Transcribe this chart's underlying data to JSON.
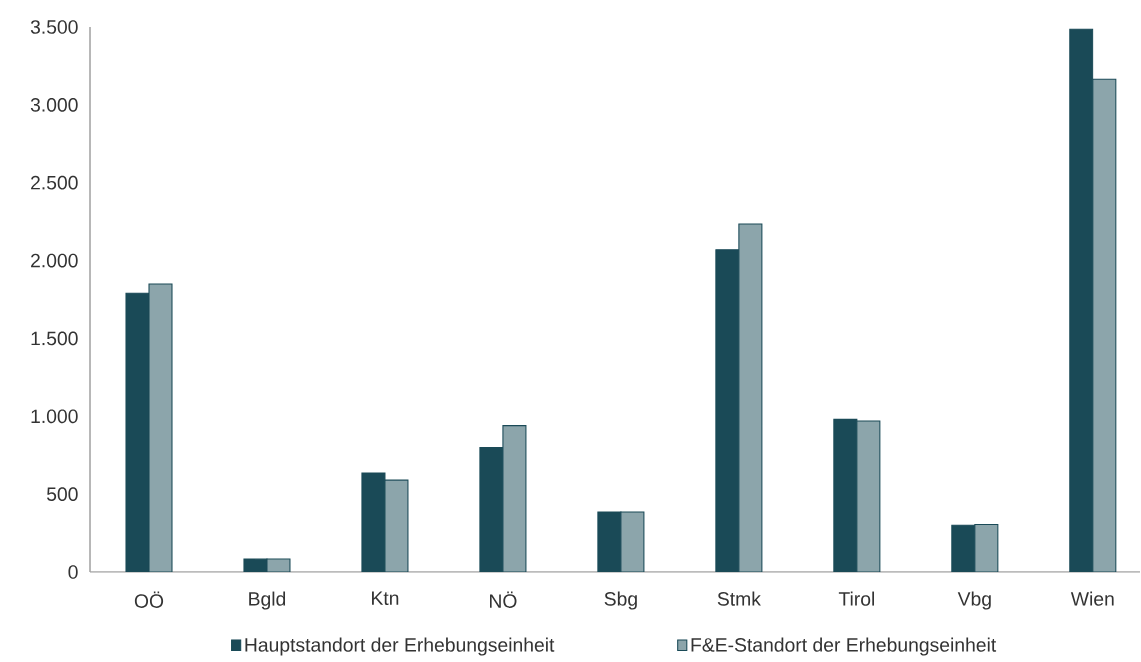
{
  "chart_data": {
    "type": "bar",
    "categories": [
      "OÖ",
      "Bgld",
      "Ktn",
      "NÖ",
      "Sbg",
      "Stmk",
      "Tirol",
      "Vbg",
      "Wien"
    ],
    "series": [
      {
        "name": "Hauptstandort der Erhebungseinheit",
        "color": "#1a4a57",
        "values": [
          1790,
          83,
          635,
          800,
          385,
          2070,
          980,
          300,
          3485
        ]
      },
      {
        "name": "F&E-Standort der Erhebungseinheit",
        "color": "#8ca5ab",
        "values": [
          1850,
          83,
          590,
          940,
          385,
          2235,
          970,
          305,
          3165
        ]
      }
    ],
    "ylim": [
      0,
      3500
    ],
    "yticks": [
      0,
      500,
      {
        "value": 1000,
        "label": "1.000"
      },
      {
        "value": 1500,
        "label": "1.500"
      },
      {
        "value": 2000,
        "label": "2.000"
      },
      {
        "value": 2500,
        "label": "2.500"
      },
      {
        "value": 3000,
        "label": "3.000"
      },
      {
        "value": 3500,
        "label": "3.500"
      }
    ],
    "grid": false,
    "legend": "bottom"
  }
}
